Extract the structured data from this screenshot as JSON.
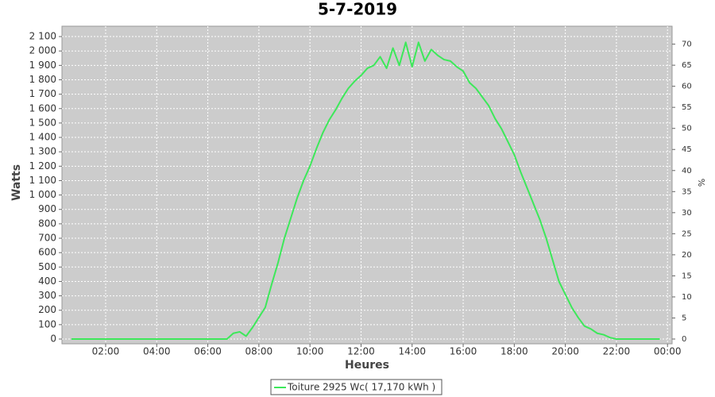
{
  "chart_data": {
    "type": "line",
    "title": "5-7-2019",
    "x_label": "Heures",
    "y_label": "Watts",
    "y2_label": "%",
    "grid": true,
    "legend": "bottom",
    "x": [
      0.66,
      6.5,
      6.75,
      7.0,
      7.25,
      7.5,
      7.75,
      8.0,
      8.25,
      8.5,
      8.75,
      9.0,
      9.25,
      9.5,
      9.75,
      10.0,
      10.25,
      10.5,
      10.75,
      11.0,
      11.25,
      11.5,
      11.75,
      12.0,
      12.25,
      12.5,
      12.75,
      13.0,
      13.25,
      13.5,
      13.75,
      14.0,
      14.25,
      14.5,
      14.75,
      15.0,
      15.25,
      15.5,
      15.75,
      16.0,
      16.25,
      16.5,
      16.75,
      17.0,
      17.25,
      17.5,
      17.75,
      18.0,
      18.25,
      18.5,
      18.75,
      19.0,
      19.25,
      19.5,
      19.75,
      20.0,
      20.25,
      20.5,
      20.75,
      21.0,
      21.25,
      21.5,
      21.75,
      22.0,
      22.5,
      23.7
    ],
    "series": [
      {
        "name": "Toiture 2925 Wc( 17,170 kWh )",
        "color": "#3de85a",
        "values": [
          0,
          0,
          0,
          40,
          50,
          20,
          80,
          150,
          220,
          380,
          530,
          700,
          840,
          980,
          1100,
          1200,
          1320,
          1430,
          1520,
          1590,
          1670,
          1740,
          1790,
          1830,
          1880,
          1900,
          1960,
          1880,
          2020,
          1900,
          2060,
          1890,
          2060,
          1930,
          2010,
          1970,
          1940,
          1930,
          1890,
          1860,
          1780,
          1740,
          1680,
          1620,
          1530,
          1460,
          1370,
          1280,
          1160,
          1050,
          940,
          830,
          700,
          550,
          400,
          310,
          220,
          150,
          90,
          70,
          40,
          30,
          10,
          0,
          0,
          0
        ]
      }
    ],
    "xlim": [
      0.29,
      24.18
    ],
    "xticks": [
      {
        "value": 2,
        "label": "02:00"
      },
      {
        "value": 4,
        "label": "04:00"
      },
      {
        "value": 6,
        "label": "06:00"
      },
      {
        "value": 8,
        "label": "08:00"
      },
      {
        "value": 10,
        "label": "10:00"
      },
      {
        "value": 12,
        "label": "12:00"
      },
      {
        "value": 14,
        "label": "14:00"
      },
      {
        "value": 16,
        "label": "16:00"
      },
      {
        "value": 18,
        "label": "18:00"
      },
      {
        "value": 20,
        "label": "20:00"
      },
      {
        "value": 22,
        "label": "22:00"
      },
      {
        "value": 24,
        "label": "00:00"
      }
    ],
    "ylim": [
      -33,
      2172
    ],
    "yticks": [
      0,
      100,
      200,
      300,
      400,
      500,
      600,
      700,
      800,
      900,
      {
        "value": 1000,
        "label": "1 000"
      },
      {
        "value": 1100,
        "label": "1 100"
      },
      {
        "value": 1200,
        "label": "1 200"
      },
      {
        "value": 1300,
        "label": "1 300"
      },
      {
        "value": 1400,
        "label": "1 400"
      },
      {
        "value": 1500,
        "label": "1 500"
      },
      {
        "value": 1600,
        "label": "1 600"
      },
      {
        "value": 1700,
        "label": "1 700"
      },
      {
        "value": 1800,
        "label": "1 800"
      },
      {
        "value": 1900,
        "label": "1 900"
      },
      {
        "value": 2000,
        "label": "2 000"
      },
      {
        "value": 2100,
        "label": "2 100"
      }
    ],
    "y2lim": [
      -1.13,
      74.26
    ],
    "y2ticks": [
      0,
      5,
      10,
      15,
      20,
      25,
      30,
      35,
      40,
      45,
      50,
      55,
      60,
      65,
      70
    ]
  }
}
